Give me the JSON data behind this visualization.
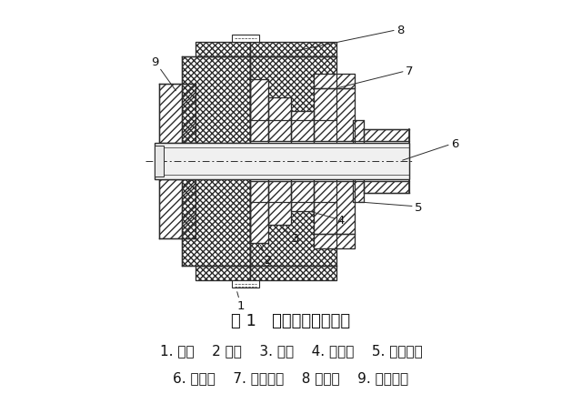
{
  "title": "图 1   安全离合器结构图",
  "legend_line1": "1. 齿轮    2 压板    3. 蝶簧    4. 花键套    5. 扣紧螺母",
  "legend_line2": "6. 齿轮轴    7. 右支承套    8 摩擦片    9. 左支承套",
  "bg_color": "#ffffff",
  "lc": "#2c2c2c",
  "label_fontsize": 9,
  "title_fontsize": 13,
  "legend_fontsize": 11
}
